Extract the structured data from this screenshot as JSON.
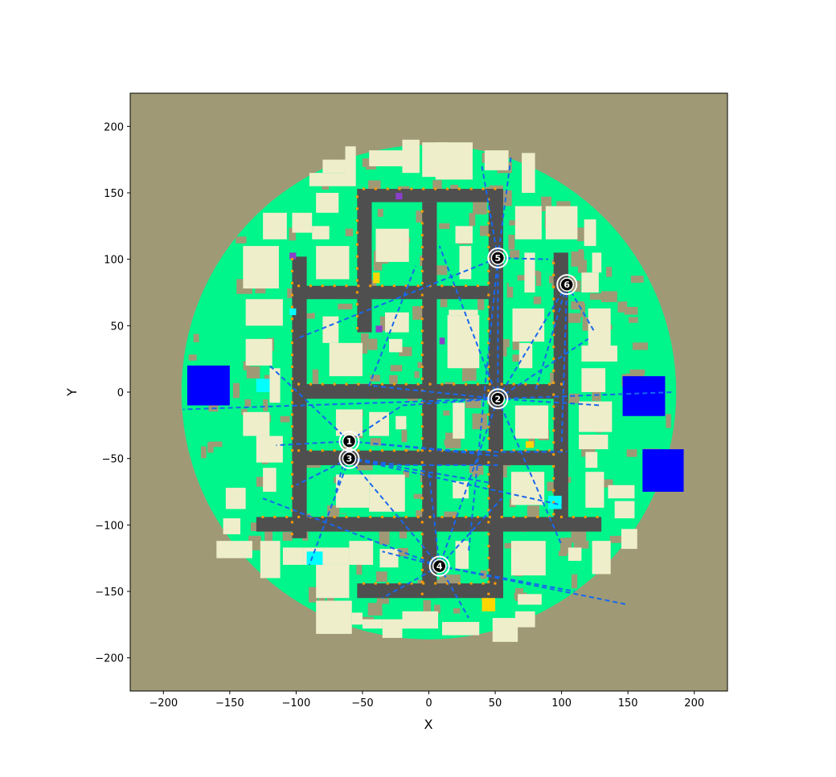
{
  "colors": {
    "background": "#ffffff",
    "ground": "#9f9a75",
    "vegetation": "#00f58a",
    "building": "#efeeca",
    "road": "#4f4f4f",
    "route": "#1768ee",
    "water": "#0000ff",
    "cyan": "#00ffff",
    "yellow": "#ffd700",
    "purple": "#8a3fc9",
    "orange": "#ff9c00"
  },
  "chart_data": {
    "type": "map",
    "xlabel": "X",
    "ylabel": "Y",
    "xlim": [
      -225,
      225
    ],
    "ylim": [
      -225,
      225
    ],
    "xticks": [
      -200,
      -150,
      -100,
      -50,
      0,
      50,
      100,
      150,
      200
    ],
    "yticks": [
      -200,
      -150,
      -100,
      -50,
      0,
      50,
      100,
      150,
      200
    ],
    "map_radius": 190,
    "nodes": [
      {
        "label": "1",
        "x": -60,
        "y": -37
      },
      {
        "label": "2",
        "x": 52,
        "y": -5
      },
      {
        "label": "3",
        "x": -60,
        "y": -50
      },
      {
        "label": "4",
        "x": 8,
        "y": -131
      },
      {
        "label": "5",
        "x": 52,
        "y": 101
      },
      {
        "label": "6",
        "x": 104,
        "y": 81
      }
    ],
    "roads": [
      {
        "x0": -103,
        "x1": -92,
        "y0": -110,
        "y1": 102
      },
      {
        "x0": -54,
        "x1": -43,
        "y0": 45,
        "y1": 153
      },
      {
        "x0": -5,
        "x1": 6,
        "y0": -155,
        "y1": 143
      },
      {
        "x0": 45,
        "x1": 56,
        "y0": -155,
        "y1": 153
      },
      {
        "x0": 94,
        "x1": 105,
        "y0": -95,
        "y1": 105
      },
      {
        "x0": -54,
        "x1": 56,
        "y0": 143,
        "y1": 153
      },
      {
        "x0": -103,
        "x1": 45,
        "y0": 70,
        "y1": 80
      },
      {
        "x0": -103,
        "x1": 105,
        "y0": -5,
        "y1": 6
      },
      {
        "x0": -103,
        "x1": 105,
        "y0": -55,
        "y1": -44
      },
      {
        "x0": -130,
        "x1": 130,
        "y0": -105,
        "y1": -94
      },
      {
        "x0": -54,
        "x1": 56,
        "y0": -155,
        "y1": -144
      }
    ],
    "buildings": [
      {
        "x0": -125,
        "x1": -107,
        "y0": 115,
        "y1": 135
      },
      {
        "x0": -103,
        "x1": -88,
        "y0": 120,
        "y1": 135
      },
      {
        "x0": -88,
        "x1": -75,
        "y0": 115,
        "y1": 125
      },
      {
        "x0": -85,
        "x1": -68,
        "y0": 135,
        "y1": 150
      },
      {
        "x0": -90,
        "x1": -63,
        "y0": 155,
        "y1": 165
      },
      {
        "x0": -80,
        "x1": -63,
        "y0": 165,
        "y1": 175
      },
      {
        "x0": -63,
        "x1": -55,
        "y0": 155,
        "y1": 185
      },
      {
        "x0": -45,
        "x1": -20,
        "y0": 170,
        "y1": 182
      },
      {
        "x0": -20,
        "x1": -7,
        "y0": 165,
        "y1": 190
      },
      {
        "x0": -5,
        "x1": 15,
        "y0": 162,
        "y1": 188
      },
      {
        "x0": 5,
        "x1": 33,
        "y0": 160,
        "y1": 188
      },
      {
        "x0": 42,
        "x1": 60,
        "y0": 167,
        "y1": 182
      },
      {
        "x0": 70,
        "x1": 80,
        "y0": 150,
        "y1": 180
      },
      {
        "x0": 65,
        "x1": 85,
        "y0": 115,
        "y1": 140
      },
      {
        "x0": 88,
        "x1": 112,
        "y0": 115,
        "y1": 140
      },
      {
        "x0": 117,
        "x1": 126,
        "y0": 110,
        "y1": 130
      },
      {
        "x0": 123,
        "x1": 130,
        "y0": 90,
        "y1": 105
      },
      {
        "x0": -140,
        "x1": -113,
        "y0": 78,
        "y1": 110
      },
      {
        "x0": -85,
        "x1": -60,
        "y0": 85,
        "y1": 110
      },
      {
        "x0": -40,
        "x1": -15,
        "y0": 98,
        "y1": 123
      },
      {
        "x0": 20,
        "x1": 33,
        "y0": 112,
        "y1": 125
      },
      {
        "x0": 23,
        "x1": 32,
        "y0": 85,
        "y1": 110
      },
      {
        "x0": 72,
        "x1": 80,
        "y0": 75,
        "y1": 105
      },
      {
        "x0": 115,
        "x1": 128,
        "y0": 75,
        "y1": 90
      },
      {
        "x0": -138,
        "x1": -110,
        "y0": 50,
        "y1": 70
      },
      {
        "x0": -80,
        "x1": -68,
        "y0": 37,
        "y1": 57
      },
      {
        "x0": -33,
        "x1": -15,
        "y0": 45,
        "y1": 60
      },
      {
        "x0": -30,
        "x1": -20,
        "y0": 30,
        "y1": 40
      },
      {
        "x0": 15,
        "x1": 37,
        "y0": 58,
        "y1": 62
      },
      {
        "x0": 14,
        "x1": 38,
        "y0": 18,
        "y1": 58
      },
      {
        "x0": 63,
        "x1": 87,
        "y0": 38,
        "y1": 63
      },
      {
        "x0": 68,
        "x1": 78,
        "y0": 18,
        "y1": 37
      },
      {
        "x0": 120,
        "x1": 137,
        "y0": 25,
        "y1": 63
      },
      {
        "x0": 115,
        "x1": 142,
        "y0": 23,
        "y1": 35
      },
      {
        "x0": 115,
        "x1": 133,
        "y0": 0,
        "y1": 18
      },
      {
        "x0": -138,
        "x1": -118,
        "y0": 20,
        "y1": 40
      },
      {
        "x0": -120,
        "x1": -112,
        "y0": -8,
        "y1": 18
      },
      {
        "x0": -75,
        "x1": -50,
        "y0": 12,
        "y1": 37
      },
      {
        "x0": -140,
        "x1": -120,
        "y0": -33,
        "y1": -15
      },
      {
        "x0": -130,
        "x1": -110,
        "y0": -53,
        "y1": -33
      },
      {
        "x0": -70,
        "x1": -50,
        "y0": -33,
        "y1": -13
      },
      {
        "x0": -45,
        "x1": -30,
        "y0": -33,
        "y1": -15
      },
      {
        "x0": -25,
        "x1": -17,
        "y0": -28,
        "y1": -18
      },
      {
        "x0": 18,
        "x1": 27,
        "y0": -35,
        "y1": -8
      },
      {
        "x0": 65,
        "x1": 90,
        "y0": -35,
        "y1": -10
      },
      {
        "x0": 113,
        "x1": 138,
        "y0": -30,
        "y1": -7
      },
      {
        "x0": 113,
        "x1": 135,
        "y0": -43,
        "y1": -32
      },
      {
        "x0": 118,
        "x1": 127,
        "y0": -57,
        "y1": -45
      },
      {
        "x0": -125,
        "x1": -115,
        "y0": -75,
        "y1": -57
      },
      {
        "x0": -153,
        "x1": -138,
        "y0": -88,
        "y1": -72
      },
      {
        "x0": -70,
        "x1": -45,
        "y0": -87,
        "y1": -62
      },
      {
        "x0": -45,
        "x1": -18,
        "y0": -90,
        "y1": -62
      },
      {
        "x0": 18,
        "x1": 30,
        "y0": -80,
        "y1": -67
      },
      {
        "x0": 62,
        "x1": 87,
        "y0": -85,
        "y1": -60
      },
      {
        "x0": 118,
        "x1": 132,
        "y0": -87,
        "y1": -60
      },
      {
        "x0": 135,
        "x1": 155,
        "y0": -80,
        "y1": -70
      },
      {
        "x0": 140,
        "x1": 155,
        "y0": -95,
        "y1": -82
      },
      {
        "x0": -155,
        "x1": -142,
        "y0": -107,
        "y1": -95
      },
      {
        "x0": -160,
        "x1": -133,
        "y0": -125,
        "y1": -112
      },
      {
        "x0": -127,
        "x1": -112,
        "y0": -140,
        "y1": -112
      },
      {
        "x0": -110,
        "x1": -95,
        "y0": -130,
        "y1": -117
      },
      {
        "x0": -95,
        "x1": -75,
        "y0": -130,
        "y1": -117
      },
      {
        "x0": -77,
        "x1": -60,
        "y0": -130,
        "y1": -117
      },
      {
        "x0": -60,
        "x1": -42,
        "y0": -130,
        "y1": -112
      },
      {
        "x0": -37,
        "x1": -23,
        "y0": -132,
        "y1": -118
      },
      {
        "x0": 20,
        "x1": 30,
        "y0": -133,
        "y1": -112
      },
      {
        "x0": 62,
        "x1": 88,
        "y0": -138,
        "y1": -112
      },
      {
        "x0": 105,
        "x1": 115,
        "y0": -127,
        "y1": -117
      },
      {
        "x0": 123,
        "x1": 137,
        "y0": -137,
        "y1": -112
      },
      {
        "x0": 145,
        "x1": 157,
        "y0": -118,
        "y1": -103
      },
      {
        "x0": -85,
        "x1": -60,
        "y0": -155,
        "y1": -130
      },
      {
        "x0": -85,
        "x1": -58,
        "y0": -182,
        "y1": -157
      },
      {
        "x0": -58,
        "x1": -50,
        "y0": -175,
        "y1": -166
      },
      {
        "x0": -50,
        "x1": -35,
        "y0": -178,
        "y1": -171
      },
      {
        "x0": -35,
        "x1": -20,
        "y0": -185,
        "y1": -171
      },
      {
        "x0": -20,
        "x1": 7,
        "y0": -178,
        "y1": -165
      },
      {
        "x0": 10,
        "x1": 38,
        "y0": -183,
        "y1": -173
      },
      {
        "x0": 48,
        "x1": 67,
        "y0": -188,
        "y1": -170
      },
      {
        "x0": 65,
        "x1": 80,
        "y0": -177,
        "y1": -165
      },
      {
        "x0": 67,
        "x1": 85,
        "y0": -160,
        "y1": -152
      }
    ],
    "water_blocks": [
      {
        "x0": -182,
        "x1": -150,
        "y0": -10,
        "y1": 20
      },
      {
        "x0": 146,
        "x1": 178,
        "y0": -18,
        "y1": 12
      },
      {
        "x0": 161,
        "x1": 192,
        "y0": -75,
        "y1": -43
      }
    ],
    "cyan_blocks": [
      {
        "x0": -130,
        "x1": -120,
        "y0": 0,
        "y1": 10
      },
      {
        "x0": -92,
        "x1": -80,
        "y0": -130,
        "y1": -120
      },
      {
        "x0": 90,
        "x1": 100,
        "y0": -88,
        "y1": -78
      },
      {
        "x0": -105,
        "x1": -100,
        "y0": 58,
        "y1": 63
      }
    ],
    "yellow_blocks": [
      {
        "x0": -42,
        "x1": -37,
        "y0": 82,
        "y1": 90
      },
      {
        "x0": 40,
        "x1": 50,
        "y0": -165,
        "y1": -155
      },
      {
        "x0": 73,
        "x1": 79,
        "y0": -42,
        "y1": -37
      }
    ],
    "purple_blocks": [
      {
        "x0": -105,
        "x1": -100,
        "y0": 100,
        "y1": 105
      },
      {
        "x0": -40,
        "x1": -35,
        "y0": 45,
        "y1": 50
      },
      {
        "x0": -25,
        "x1": -20,
        "y0": 145,
        "y1": 150
      },
      {
        "x0": 8,
        "x1": 12,
        "y0": 36,
        "y1": 41
      }
    ],
    "routes": [
      [
        [
          -60,
          -37
        ],
        [
          -20,
          -10
        ],
        [
          52,
          -5
        ]
      ],
      [
        [
          -60,
          -37
        ],
        [
          -120,
          20
        ]
      ],
      [
        [
          -60,
          -37
        ],
        [
          -115,
          -40
        ]
      ],
      [
        [
          -60,
          -37
        ],
        [
          30,
          -45
        ],
        [
          104,
          -45
        ]
      ],
      [
        [
          -60,
          -37
        ],
        [
          52,
          -48
        ]
      ],
      [
        [
          -60,
          -50
        ],
        [
          -20,
          -55
        ],
        [
          52,
          -55
        ]
      ],
      [
        [
          -60,
          -50
        ],
        [
          -100,
          -70
        ]
      ],
      [
        [
          -60,
          -50
        ],
        [
          -90,
          -130
        ]
      ],
      [
        [
          -60,
          -50
        ],
        [
          8,
          -131
        ]
      ],
      [
        [
          -60,
          -50
        ],
        [
          45,
          -68
        ]
      ],
      [
        [
          -60,
          -50
        ],
        [
          100,
          -85
        ]
      ],
      [
        [
          52,
          -5
        ],
        [
          52,
          101
        ]
      ],
      [
        [
          52,
          -5
        ],
        [
          104,
          81
        ]
      ],
      [
        [
          52,
          -5
        ],
        [
          185,
          0
        ]
      ],
      [
        [
          52,
          -5
        ],
        [
          -185,
          -13
        ]
      ],
      [
        [
          52,
          -5
        ],
        [
          -45,
          5
        ],
        [
          -10,
          95
        ]
      ],
      [
        [
          52,
          -5
        ],
        [
          8,
          110
        ]
      ],
      [
        [
          52,
          -5
        ],
        [
          120,
          40
        ]
      ],
      [
        [
          52,
          -5
        ],
        [
          8,
          -131
        ]
      ],
      [
        [
          52,
          -5
        ],
        [
          100,
          -115
        ]
      ],
      [
        [
          52,
          -5
        ],
        [
          130,
          -10
        ]
      ],
      [
        [
          52,
          101
        ],
        [
          40,
          170
        ]
      ],
      [
        [
          52,
          101
        ],
        [
          62,
          178
        ]
      ],
      [
        [
          52,
          101
        ],
        [
          -100,
          40
        ]
      ],
      [
        [
          52,
          101
        ],
        [
          30,
          -120
        ]
      ],
      [
        [
          52,
          101
        ],
        [
          90,
          100
        ]
      ],
      [
        [
          104,
          81
        ],
        [
          100,
          -40
        ]
      ],
      [
        [
          104,
          81
        ],
        [
          80,
          0
        ]
      ],
      [
        [
          104,
          81
        ],
        [
          125,
          45
        ]
      ],
      [
        [
          8,
          -131
        ],
        [
          -125,
          -80
        ]
      ],
      [
        [
          8,
          -131
        ],
        [
          -35,
          -155
        ]
      ],
      [
        [
          8,
          -131
        ],
        [
          30,
          -170
        ]
      ],
      [
        [
          8,
          -131
        ],
        [
          150,
          -160
        ]
      ],
      [
        [
          8,
          -131
        ],
        [
          0,
          -60
        ]
      ],
      [
        [
          8,
          -131
        ],
        [
          -35,
          -120
        ]
      ],
      [
        [
          8,
          -131
        ],
        [
          55,
          -80
        ]
      ],
      [
        [
          8,
          -131
        ],
        [
          110,
          -150
        ]
      ],
      [
        [
          -60,
          -37
        ],
        [
          -70,
          -75
        ]
      ]
    ]
  }
}
